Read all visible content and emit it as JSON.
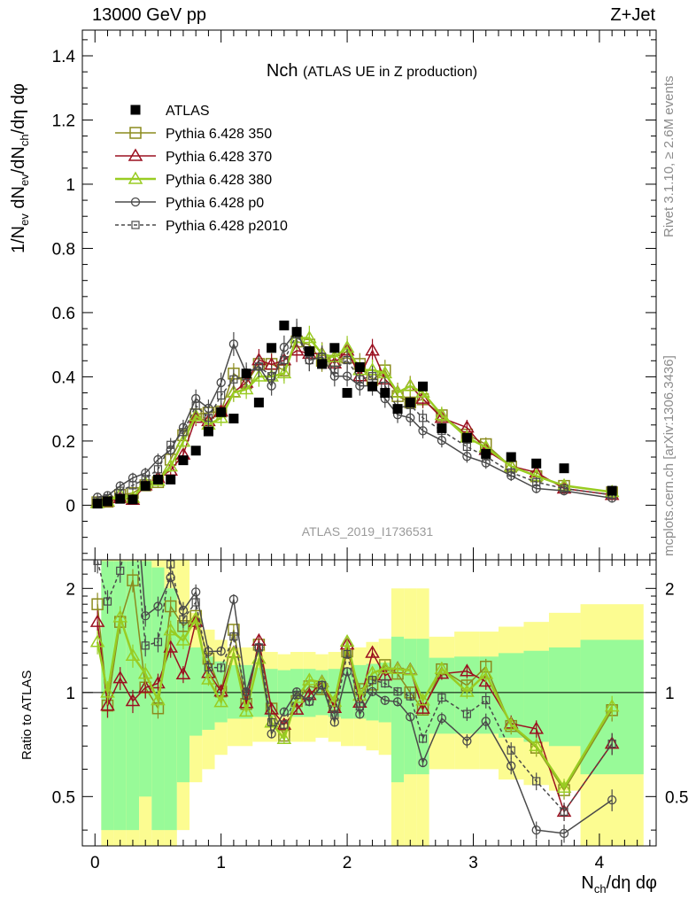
{
  "header": {
    "left": "13000 GeV pp",
    "right": "Z+Jet"
  },
  "side_labels": {
    "rivet": "Rivet 3.1.10, ≥ 2.6M events",
    "mcplots": "mcplots.cern.ch [arXiv:1306.3436]"
  },
  "axis_labels": {
    "main_y": "1/N_ev dN_ev/dN_ch/dη dφ",
    "ratio_y": "Ratio to ATLAS",
    "x": "N_ch/dη dφ"
  },
  "chart_data": {
    "type": "scatter",
    "title": "Nch",
    "subtitle": "(ATLAS UE in Z production)",
    "analysis_tag": "ATLAS_2019_I1736531",
    "xlim": [
      -0.1,
      4.45
    ],
    "ylim": [
      -0.17,
      1.48
    ],
    "ratio_ylim": [
      0.36,
      2.42
    ],
    "x_ticks": [
      "0",
      "1",
      "2",
      "3",
      "4"
    ],
    "y_ticks": [
      "0",
      "0.2",
      "0.4",
      "0.6",
      "0.8",
      "1",
      "1.2",
      "1.4"
    ],
    "ratio_ticks": [
      "0.5",
      "1",
      "2"
    ],
    "ratio_reference": 1,
    "legend_position": "top-left",
    "colors": {
      "band_inner": "#98fa98",
      "band_outer": "#fcfc91",
      "atlas": "#000000"
    },
    "x": [
      0.02,
      0.1,
      0.2,
      0.3,
      0.4,
      0.5,
      0.6,
      0.7,
      0.8,
      0.9,
      1.0,
      1.1,
      1.2,
      1.3,
      1.4,
      1.5,
      1.6,
      1.7,
      1.8,
      1.9,
      2.0,
      2.1,
      2.2,
      2.3,
      2.4,
      2.5,
      2.6,
      2.75,
      2.95,
      3.1,
      3.3,
      3.5,
      3.72,
      4.1
    ],
    "series": [
      {
        "name": "ATLAS",
        "color": "#000000",
        "marker": "filled-square",
        "values": [
          0.005,
          0.012,
          0.02,
          0.018,
          0.06,
          0.08,
          0.08,
          0.14,
          0.17,
          0.23,
          0.29,
          0.27,
          0.41,
          0.32,
          0.49,
          0.56,
          0.54,
          0.48,
          0.44,
          0.49,
          0.35,
          0.43,
          0.37,
          0.35,
          0.3,
          0.32,
          0.37,
          0.24,
          0.21,
          0.16,
          0.15,
          0.13,
          0.115,
          0.045
        ]
      },
      {
        "name": "Pythia 6.428 350",
        "color": "#8b8b1e",
        "marker": "open-square",
        "values": [
          0.009,
          0.011,
          0.032,
          0.038,
          0.062,
          0.072,
          0.142,
          0.218,
          0.283,
          0.288,
          0.292,
          0.41,
          0.38,
          0.44,
          0.44,
          0.42,
          0.51,
          0.5,
          0.45,
          0.45,
          0.46,
          0.44,
          0.39,
          0.42,
          0.34,
          0.32,
          0.33,
          0.28,
          0.22,
          0.19,
          0.12,
          0.09,
          0.06,
          0.04
        ]
      },
      {
        "name": "Pythia 6.428 370",
        "color": "#9b1020",
        "marker": "open-triangle",
        "values": [
          0.008,
          0.011,
          0.022,
          0.017,
          0.062,
          0.085,
          0.108,
          0.158,
          0.272,
          0.262,
          0.292,
          0.352,
          0.382,
          0.452,
          0.438,
          0.452,
          0.482,
          0.472,
          0.472,
          0.442,
          0.482,
          0.402,
          0.482,
          0.392,
          0.352,
          0.372,
          0.332,
          0.272,
          0.242,
          0.172,
          0.122,
          0.102,
          0.052,
          0.032
        ]
      },
      {
        "name": "Pythia 6.428 380",
        "color": "#99cc22",
        "marker": "open-triangle",
        "values": [
          0.007,
          0.012,
          0.033,
          0.023,
          0.068,
          0.076,
          0.121,
          0.198,
          0.278,
          0.251,
          0.272,
          0.351,
          0.361,
          0.401,
          0.401,
          0.411,
          0.521,
          0.521,
          0.471,
          0.461,
          0.491,
          0.421,
          0.421,
          0.411,
          0.351,
          0.371,
          0.351,
          0.281,
          0.211,
          0.181,
          0.121,
          0.091,
          0.061,
          0.041
        ]
      },
      {
        "name": "Pythia 6.428 p0",
        "color": "#4a4a4a",
        "marker": "open-circle",
        "values": [
          0.025,
          0.03,
          0.06,
          0.085,
          0.1,
          0.142,
          0.172,
          0.242,
          0.332,
          0.302,
          0.382,
          0.502,
          0.412,
          0.432,
          0.372,
          0.492,
          0.542,
          0.452,
          0.462,
          0.402,
          0.402,
          0.372,
          0.372,
          0.332,
          0.282,
          0.272,
          0.232,
          0.202,
          0.152,
          0.132,
          0.092,
          0.052,
          0.045,
          0.022
        ]
      },
      {
        "name": "Pythia 6.428 p2010",
        "color": "#4a4a4a",
        "marker": "open-square-dashed",
        "values": [
          0.012,
          0.022,
          0.045,
          0.062,
          0.082,
          0.112,
          0.188,
          0.228,
          0.31,
          0.272,
          0.342,
          0.392,
          0.402,
          0.432,
          0.402,
          0.452,
          0.532,
          0.452,
          0.462,
          0.422,
          0.452,
          0.392,
          0.402,
          0.372,
          0.302,
          0.312,
          0.272,
          0.232,
          0.182,
          0.152,
          0.102,
          0.072,
          0.052,
          0.032
        ]
      }
    ],
    "ratio_band": {
      "x_edges": [
        0.05,
        0.15,
        0.25,
        0.35,
        0.45,
        0.55,
        0.65,
        0.75,
        0.85,
        0.95,
        1.05,
        1.15,
        1.25,
        1.35,
        1.45,
        1.55,
        1.65,
        1.75,
        1.85,
        1.95,
        2.05,
        2.15,
        2.25,
        2.35,
        2.45,
        2.55,
        2.65,
        2.85,
        3.05,
        3.2,
        3.4,
        3.6,
        3.85,
        4.35
      ],
      "inner_lo": [
        0.4,
        0.4,
        0.4,
        0.5,
        0.4,
        0.4,
        0.55,
        0.75,
        0.78,
        0.82,
        0.84,
        0.84,
        0.85,
        0.85,
        0.86,
        0.85,
        0.85,
        0.86,
        0.85,
        0.84,
        0.84,
        0.83,
        0.82,
        0.55,
        0.58,
        0.58,
        0.76,
        0.76,
        0.76,
        0.74,
        0.72,
        0.7,
        0.58
      ],
      "inner_hi": [
        2.4,
        2.4,
        2.4,
        2.4,
        2.3,
        2.0,
        1.6,
        1.35,
        1.27,
        1.23,
        1.2,
        1.2,
        1.18,
        1.17,
        1.16,
        1.17,
        1.17,
        1.16,
        1.17,
        1.18,
        1.2,
        1.21,
        1.22,
        1.45,
        1.43,
        1.43,
        1.26,
        1.27,
        1.27,
        1.3,
        1.32,
        1.35,
        1.42
      ],
      "outer_lo": [
        0.36,
        0.36,
        0.36,
        0.36,
        0.36,
        0.36,
        0.4,
        0.55,
        0.6,
        0.66,
        0.7,
        0.7,
        0.72,
        0.72,
        0.74,
        0.72,
        0.72,
        0.74,
        0.72,
        0.7,
        0.7,
        0.68,
        0.66,
        0.36,
        0.36,
        0.36,
        0.6,
        0.6,
        0.6,
        0.56,
        0.54,
        0.52,
        0.36
      ],
      "outer_hi": [
        2.42,
        2.42,
        2.42,
        2.42,
        2.42,
        2.42,
        2.42,
        1.7,
        1.52,
        1.42,
        1.35,
        1.35,
        1.33,
        1.31,
        1.29,
        1.31,
        1.31,
        1.29,
        1.31,
        1.33,
        1.35,
        1.4,
        1.43,
        2.0,
        2.0,
        2.0,
        1.45,
        1.5,
        1.5,
        1.55,
        1.6,
        1.7,
        1.8
      ]
    }
  }
}
